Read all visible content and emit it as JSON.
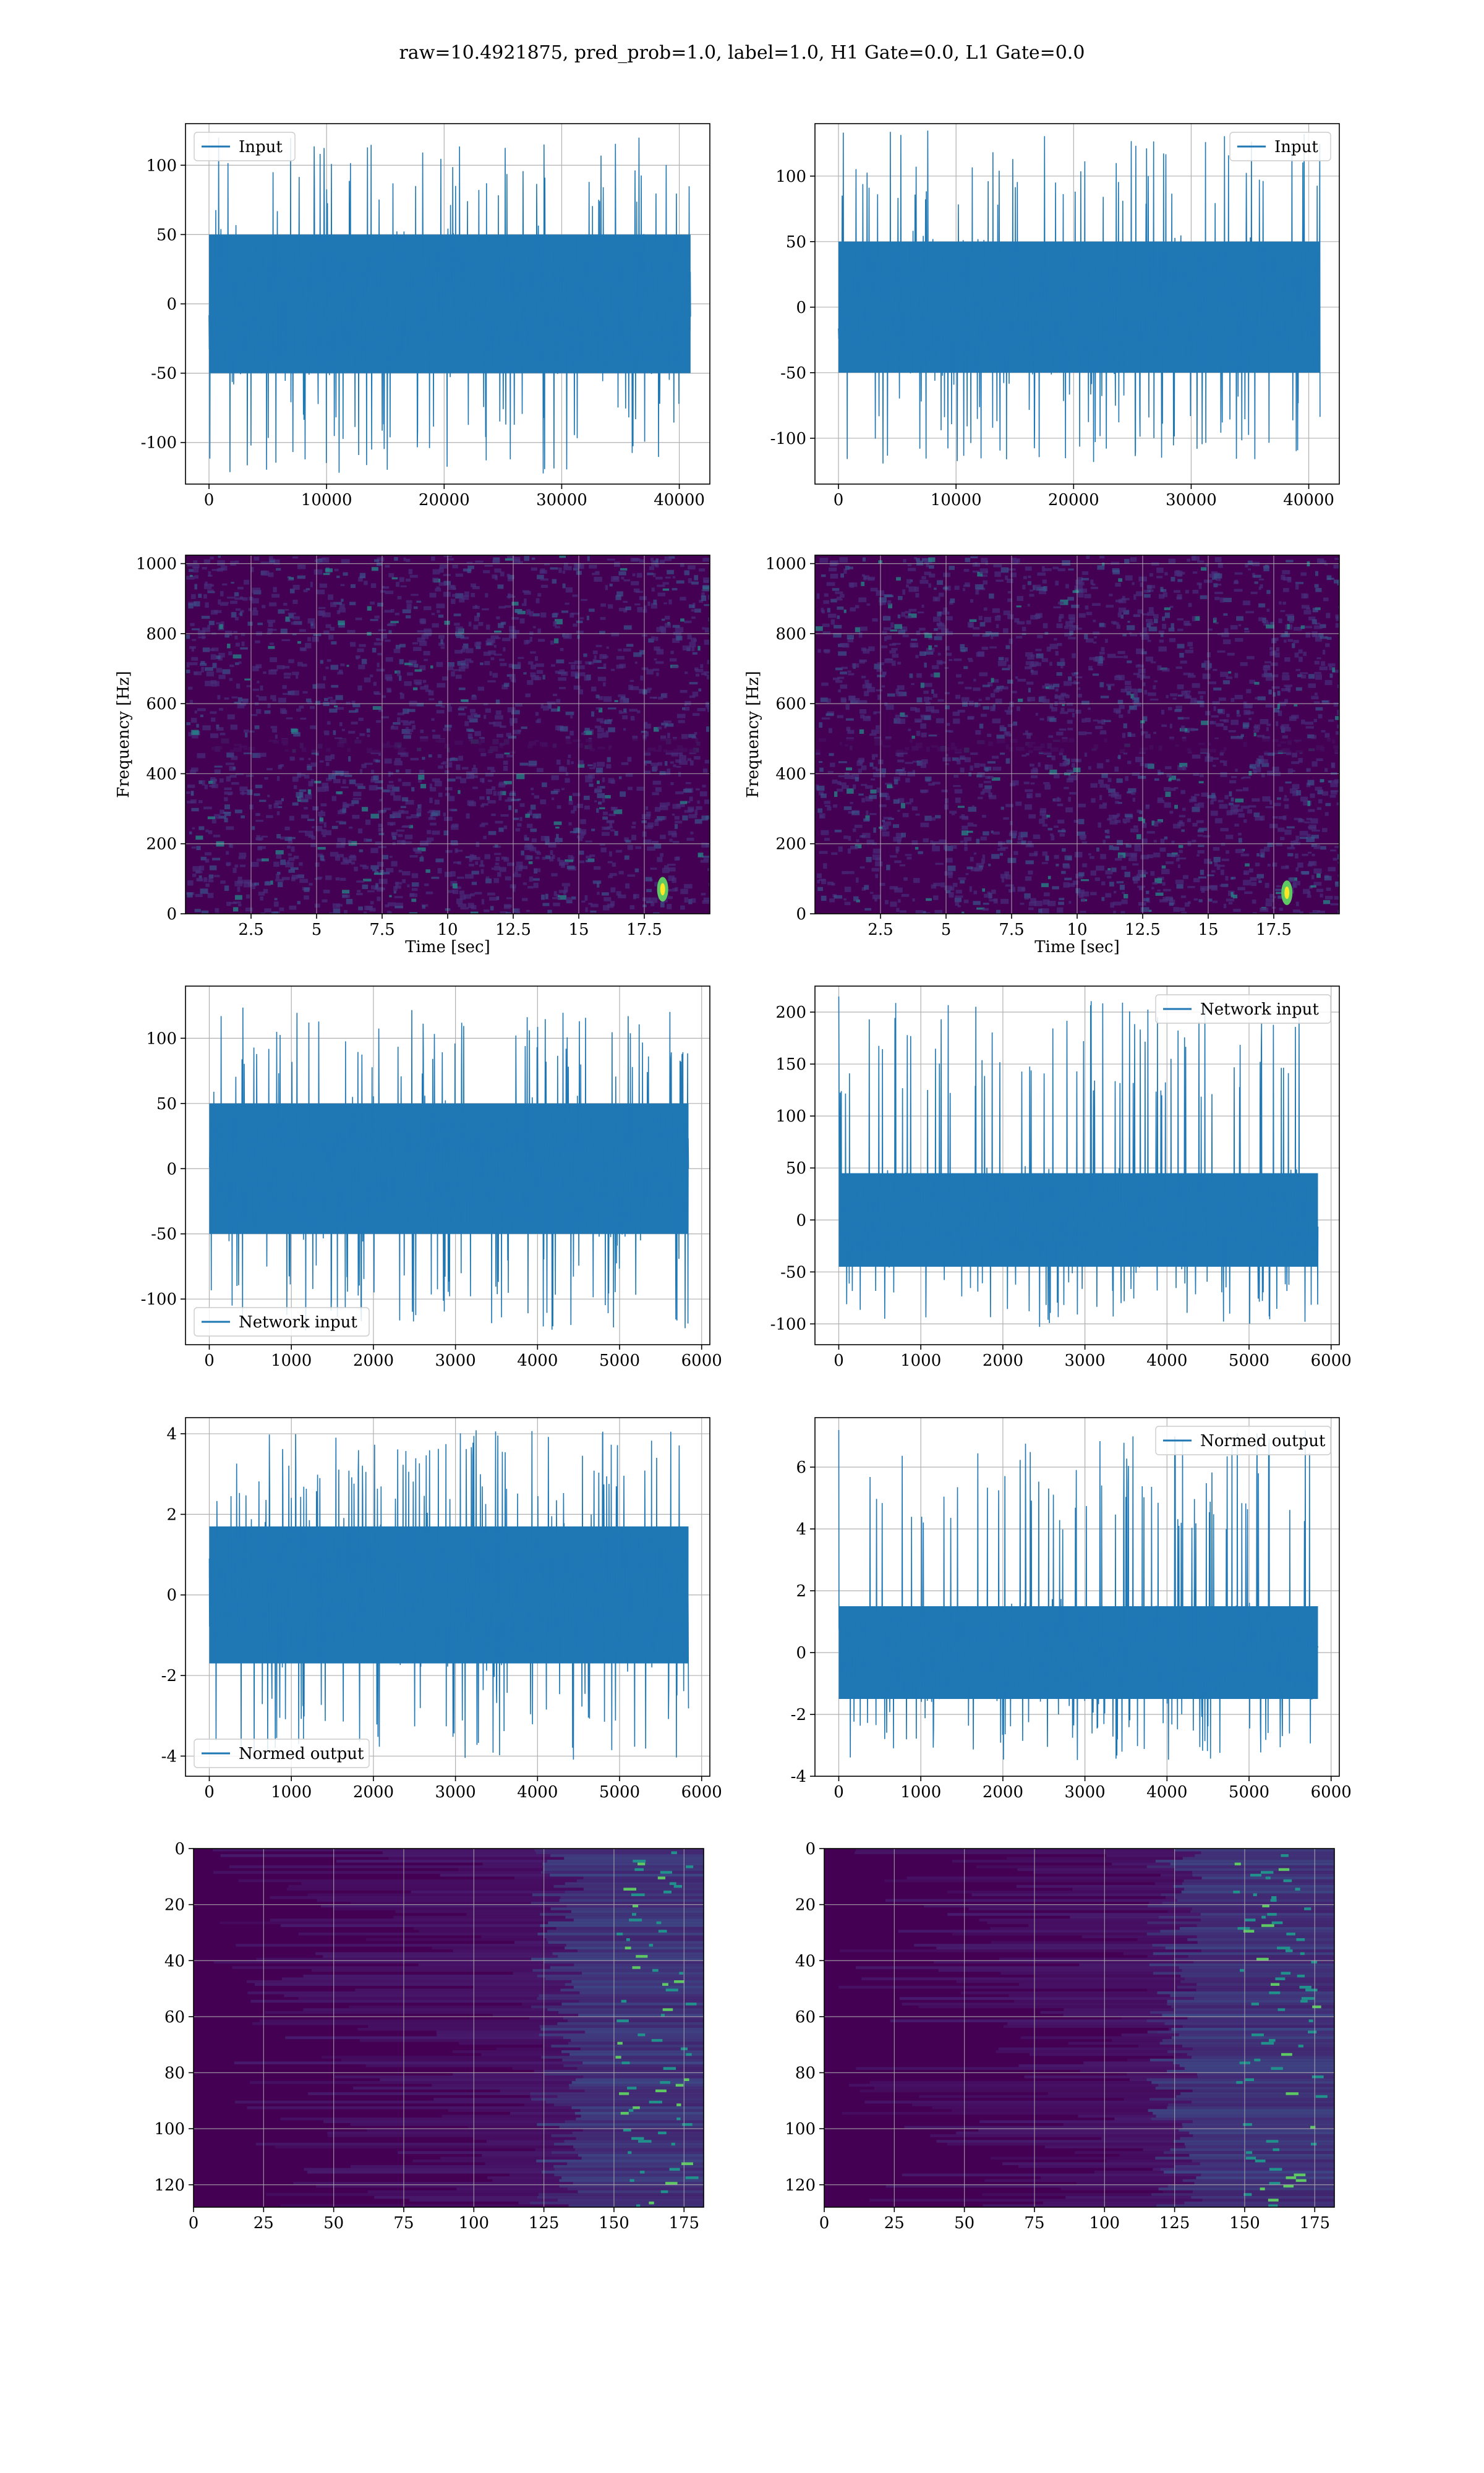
{
  "figure": {
    "suptitle": "raw=10.4921875, pred_prob=1.0, label=1.0, H1 Gate=0.0, L1 Gate=0.0"
  },
  "colors": {
    "series": "#1f77b4",
    "grid": "#b0b0b0",
    "spec_bg": "#440154",
    "spec_mid": "#3b528b",
    "spec_hi": "#21918c",
    "spec_peak": "#5ec962",
    "spec_max": "#fde725"
  },
  "chart_data": [
    {
      "id": "h1-input",
      "type": "line",
      "column": "left",
      "legend": {
        "label": "Input",
        "loc": "upper left"
      },
      "xlim": [
        -2000,
        42600
      ],
      "ylim": [
        -130,
        130
      ],
      "xticks": [
        0,
        10000,
        20000,
        30000,
        40000
      ],
      "yticks": [
        -100,
        -50,
        0,
        50,
        100
      ],
      "n_samples": 40960,
      "x_range": [
        0,
        40960
      ],
      "envelope": {
        "core": [
          -50,
          50
        ],
        "extremes": [
          -125,
          120
        ]
      },
      "grid": true
    },
    {
      "id": "l1-input",
      "type": "line",
      "column": "right",
      "legend": {
        "label": "Input",
        "loc": "upper right"
      },
      "xlim": [
        -2000,
        42600
      ],
      "ylim": [
        -135,
        140
      ],
      "xticks": [
        0,
        10000,
        20000,
        30000,
        40000
      ],
      "yticks": [
        -100,
        -50,
        0,
        50,
        100
      ],
      "n_samples": 40960,
      "x_range": [
        0,
        40960
      ],
      "envelope": {
        "core": [
          -50,
          50
        ],
        "extremes": [
          -120,
          135
        ]
      },
      "grid": true
    },
    {
      "id": "h1-spectrogram",
      "type": "heatmap",
      "column": "left",
      "xlabel": "Time [sec]",
      "ylabel": "Frequency [Hz]",
      "xlim": [
        0,
        20
      ],
      "ylim": [
        0,
        1024
      ],
      "xticks": [
        2.5,
        5.0,
        7.5,
        10.0,
        12.5,
        15.0,
        17.5
      ],
      "yticks": [
        0,
        200,
        400,
        600,
        800,
        1000
      ],
      "features": {
        "hot_spot": {
          "t": 18.2,
          "f": 70
        },
        "dark_band_hz": 480
      },
      "grid": true
    },
    {
      "id": "l1-spectrogram",
      "type": "heatmap",
      "column": "right",
      "xlabel": "Time [sec]",
      "ylabel": "Frequency [Hz]",
      "xlim": [
        0,
        20
      ],
      "ylim": [
        0,
        1024
      ],
      "xticks": [
        2.5,
        5.0,
        7.5,
        10.0,
        12.5,
        15.0,
        17.5
      ],
      "yticks": [
        0,
        200,
        400,
        600,
        800,
        1000
      ],
      "features": {
        "hot_spot": {
          "t": 18.0,
          "f": 60
        },
        "dark_band_hz": 480
      },
      "grid": true
    },
    {
      "id": "h1-network-input",
      "type": "line",
      "column": "left",
      "legend": {
        "label": "Network input",
        "loc": "lower left"
      },
      "xlim": [
        -290,
        6100
      ],
      "ylim": [
        -135,
        140
      ],
      "xticks": [
        0,
        1000,
        2000,
        3000,
        4000,
        5000,
        6000
      ],
      "yticks": [
        -100,
        -50,
        0,
        50,
        100
      ],
      "n_samples": 5840,
      "x_range": [
        0,
        5840
      ],
      "envelope": {
        "core": [
          -50,
          50
        ],
        "extremes": [
          -125,
          125
        ]
      },
      "grid": true
    },
    {
      "id": "l1-network-input",
      "type": "line",
      "column": "right",
      "legend": {
        "label": "Network input",
        "loc": "upper right"
      },
      "xlim": [
        -290,
        6100
      ],
      "ylim": [
        -120,
        225
      ],
      "xticks": [
        0,
        1000,
        2000,
        3000,
        4000,
        5000,
        6000
      ],
      "yticks": [
        -100,
        -50,
        0,
        50,
        100,
        150,
        200
      ],
      "n_samples": 5840,
      "x_range": [
        0,
        5840
      ],
      "envelope": {
        "core": [
          -45,
          45
        ],
        "extremes": [
          -105,
          215
        ]
      },
      "grid": true
    },
    {
      "id": "h1-normed-output",
      "type": "line",
      "column": "left",
      "legend": {
        "label": "Normed output",
        "loc": "lower left"
      },
      "xlim": [
        -290,
        6100
      ],
      "ylim": [
        -4.5,
        4.4
      ],
      "xticks": [
        0,
        1000,
        2000,
        3000,
        4000,
        5000,
        6000
      ],
      "yticks": [
        -4,
        -2,
        0,
        2,
        4
      ],
      "n_samples": 5840,
      "x_range": [
        0,
        5840
      ],
      "envelope": {
        "core": [
          -1.7,
          1.7
        ],
        "extremes": [
          -4.1,
          4.1
        ]
      },
      "grid": true
    },
    {
      "id": "l1-normed-output",
      "type": "line",
      "column": "right",
      "legend": {
        "label": "Normed output",
        "loc": "upper right"
      },
      "xlim": [
        -290,
        6100
      ],
      "ylim": [
        -4,
        7.6
      ],
      "xticks": [
        0,
        1000,
        2000,
        3000,
        4000,
        5000,
        6000
      ],
      "yticks": [
        -4,
        -2,
        0,
        2,
        4,
        6
      ],
      "n_samples": 5840,
      "x_range": [
        0,
        5840
      ],
      "envelope": {
        "core": [
          -1.5,
          1.5
        ],
        "extremes": [
          -3.5,
          7.2
        ]
      },
      "grid": true
    },
    {
      "id": "h1-feature-map",
      "type": "heatmap",
      "column": "left",
      "xlim": [
        0,
        182
      ],
      "ylim": [
        128,
        0
      ],
      "xticks": [
        0,
        25,
        50,
        75,
        100,
        125,
        150,
        175
      ],
      "yticks": [
        0,
        20,
        40,
        60,
        80,
        100,
        120
      ],
      "features": {
        "bright_columns": [
          150,
          176
        ]
      },
      "grid": true
    },
    {
      "id": "l1-feature-map",
      "type": "heatmap",
      "column": "right",
      "xlim": [
        0,
        182
      ],
      "ylim": [
        128,
        0
      ],
      "xticks": [
        0,
        25,
        50,
        75,
        100,
        125,
        150,
        175
      ],
      "yticks": [
        0,
        20,
        40,
        60,
        80,
        100,
        120
      ],
      "features": {
        "bright_columns": [
          145,
          176
        ]
      },
      "grid": true
    }
  ]
}
